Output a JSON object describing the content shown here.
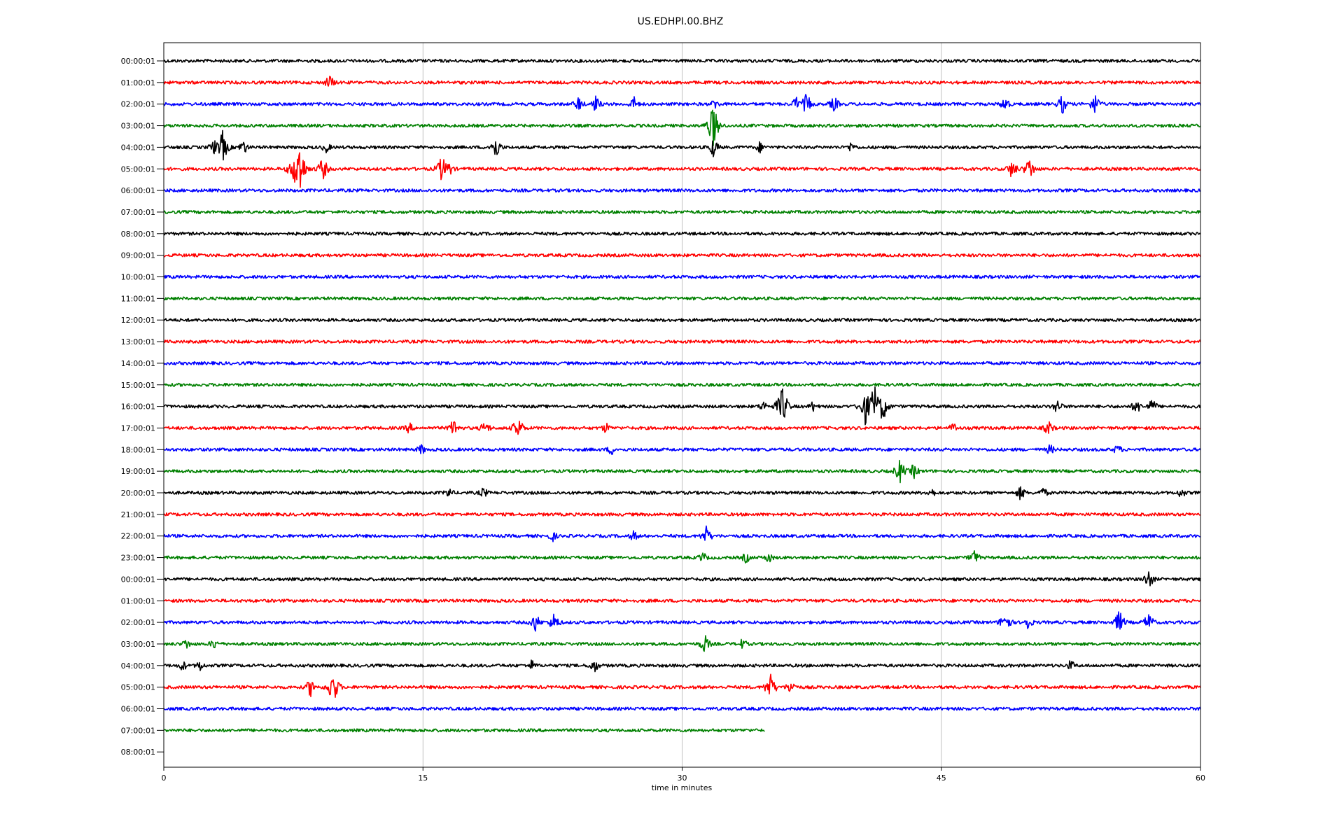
{
  "chart_data": {
    "type": "line",
    "title": "US.EDHPI.00.BHZ",
    "xlabel": "time in minutes",
    "ylabel": "",
    "xlim": [
      0,
      60
    ],
    "x_ticks": [
      "0",
      "15",
      "30",
      "45",
      "60"
    ],
    "x_grid": true,
    "colors": [
      "#000000",
      "#ff0000",
      "#0000ff",
      "#008000"
    ],
    "rows": [
      {
        "label": "00:00:01",
        "duration_min": 60,
        "events": []
      },
      {
        "label": "01:00:01",
        "duration_min": 60,
        "events": [
          {
            "t": 9.6,
            "amp": 0.4
          }
        ]
      },
      {
        "label": "02:00:01",
        "duration_min": 60,
        "events": [
          {
            "t": 24.0,
            "amp": 0.4
          },
          {
            "t": 25.0,
            "amp": 0.45
          },
          {
            "t": 27.2,
            "amp": 0.4
          },
          {
            "t": 31.9,
            "amp": 0.3
          },
          {
            "t": 36.6,
            "amp": 0.4
          },
          {
            "t": 37.2,
            "amp": 0.55
          },
          {
            "t": 38.8,
            "amp": 0.4
          },
          {
            "t": 48.7,
            "amp": 0.4
          },
          {
            "t": 52.0,
            "amp": 0.5
          },
          {
            "t": 53.9,
            "amp": 0.55
          }
        ]
      },
      {
        "label": "03:00:01",
        "duration_min": 60,
        "events": [
          {
            "t": 31.8,
            "amp": 1.1
          }
        ]
      },
      {
        "label": "04:00:01",
        "duration_min": 60,
        "events": [
          {
            "t": 2.9,
            "amp": 0.4
          },
          {
            "t": 3.4,
            "amp": 0.8
          },
          {
            "t": 4.6,
            "amp": 0.4
          },
          {
            "t": 9.4,
            "amp": 0.3
          },
          {
            "t": 19.2,
            "amp": 0.6
          },
          {
            "t": 31.8,
            "amp": 0.5
          },
          {
            "t": 34.5,
            "amp": 0.3
          },
          {
            "t": 39.8,
            "amp": 0.3
          }
        ]
      },
      {
        "label": "05:00:01",
        "duration_min": 60,
        "events": [
          {
            "t": 7.4,
            "amp": 0.5
          },
          {
            "t": 7.8,
            "amp": 1.7
          },
          {
            "t": 9.2,
            "amp": 0.6
          },
          {
            "t": 16.1,
            "amp": 0.7
          },
          {
            "t": 16.5,
            "amp": 0.4
          },
          {
            "t": 49.1,
            "amp": 0.5
          },
          {
            "t": 50.1,
            "amp": 0.6
          }
        ]
      },
      {
        "label": "06:00:01",
        "duration_min": 60,
        "events": []
      },
      {
        "label": "07:00:01",
        "duration_min": 60,
        "events": []
      },
      {
        "label": "08:00:01",
        "duration_min": 60,
        "events": []
      },
      {
        "label": "09:00:01",
        "duration_min": 60,
        "events": []
      },
      {
        "label": "10:00:01",
        "duration_min": 60,
        "events": []
      },
      {
        "label": "11:00:01",
        "duration_min": 60,
        "events": []
      },
      {
        "label": "12:00:01",
        "duration_min": 60,
        "events": []
      },
      {
        "label": "13:00:01",
        "duration_min": 60,
        "events": []
      },
      {
        "label": "14:00:01",
        "duration_min": 60,
        "events": []
      },
      {
        "label": "15:00:01",
        "duration_min": 60,
        "events": []
      },
      {
        "label": "16:00:01",
        "duration_min": 60,
        "events": [
          {
            "t": 34.7,
            "amp": 0.3
          },
          {
            "t": 35.8,
            "amp": 1.0
          },
          {
            "t": 37.6,
            "amp": 0.3
          },
          {
            "t": 40.6,
            "amp": 0.9
          },
          {
            "t": 41.1,
            "amp": 1.2
          },
          {
            "t": 41.6,
            "amp": 0.8
          },
          {
            "t": 51.7,
            "amp": 0.4
          },
          {
            "t": 56.3,
            "amp": 0.4
          },
          {
            "t": 57.2,
            "amp": 0.4
          }
        ]
      },
      {
        "label": "17:00:01",
        "duration_min": 60,
        "events": [
          {
            "t": 14.2,
            "amp": 0.3
          },
          {
            "t": 16.8,
            "amp": 0.5
          },
          {
            "t": 18.6,
            "amp": 0.4
          },
          {
            "t": 20.5,
            "amp": 0.6
          },
          {
            "t": 25.6,
            "amp": 0.3
          },
          {
            "t": 45.7,
            "amp": 0.3
          },
          {
            "t": 51.2,
            "amp": 0.4
          }
        ]
      },
      {
        "label": "18:00:01",
        "duration_min": 60,
        "events": [
          {
            "t": 14.9,
            "amp": 0.3
          },
          {
            "t": 25.9,
            "amp": 0.3
          },
          {
            "t": 51.3,
            "amp": 0.3
          },
          {
            "t": 55.2,
            "amp": 0.3
          }
        ]
      },
      {
        "label": "19:00:01",
        "duration_min": 60,
        "events": [
          {
            "t": 42.6,
            "amp": 0.6
          },
          {
            "t": 43.4,
            "amp": 0.4
          }
        ]
      },
      {
        "label": "20:00:01",
        "duration_min": 60,
        "events": [
          {
            "t": 16.5,
            "amp": 0.3
          },
          {
            "t": 18.5,
            "amp": 0.3
          },
          {
            "t": 44.4,
            "amp": 0.3
          },
          {
            "t": 49.6,
            "amp": 0.4
          },
          {
            "t": 50.9,
            "amp": 0.3
          },
          {
            "t": 58.9,
            "amp": 0.3
          }
        ]
      },
      {
        "label": "21:00:01",
        "duration_min": 60,
        "events": []
      },
      {
        "label": "22:00:01",
        "duration_min": 60,
        "events": [
          {
            "t": 22.5,
            "amp": 0.3
          },
          {
            "t": 27.2,
            "amp": 0.3
          },
          {
            "t": 31.4,
            "amp": 0.5
          }
        ]
      },
      {
        "label": "23:00:01",
        "duration_min": 60,
        "events": [
          {
            "t": 31.2,
            "amp": 0.3
          },
          {
            "t": 33.7,
            "amp": 0.3
          },
          {
            "t": 35.0,
            "amp": 0.3
          },
          {
            "t": 46.9,
            "amp": 0.4
          }
        ]
      },
      {
        "label": "00:00:01",
        "duration_min": 60,
        "events": [
          {
            "t": 57.0,
            "amp": 0.5
          }
        ]
      },
      {
        "label": "01:00:01",
        "duration_min": 60,
        "events": []
      },
      {
        "label": "02:00:01",
        "duration_min": 60,
        "events": [
          {
            "t": 21.5,
            "amp": 0.5
          },
          {
            "t": 22.6,
            "amp": 0.5
          },
          {
            "t": 48.7,
            "amp": 0.6
          },
          {
            "t": 50.0,
            "amp": 0.4
          },
          {
            "t": 55.3,
            "amp": 0.6
          },
          {
            "t": 57.0,
            "amp": 0.5
          }
        ]
      },
      {
        "label": "03:00:01",
        "duration_min": 60,
        "events": [
          {
            "t": 1.3,
            "amp": 0.3
          },
          {
            "t": 2.9,
            "amp": 0.3
          },
          {
            "t": 31.3,
            "amp": 0.5
          },
          {
            "t": 33.5,
            "amp": 0.3
          }
        ]
      },
      {
        "label": "04:00:01",
        "duration_min": 60,
        "events": [
          {
            "t": 1.1,
            "amp": 0.3
          },
          {
            "t": 2.1,
            "amp": 0.3
          },
          {
            "t": 21.3,
            "amp": 0.3
          },
          {
            "t": 24.9,
            "amp": 0.4
          },
          {
            "t": 52.5,
            "amp": 0.3
          }
        ]
      },
      {
        "label": "05:00:01",
        "duration_min": 60,
        "events": [
          {
            "t": 8.5,
            "amp": 0.5
          },
          {
            "t": 9.8,
            "amp": 0.9
          },
          {
            "t": 35.1,
            "amp": 0.7
          },
          {
            "t": 36.3,
            "amp": 0.4
          }
        ]
      },
      {
        "label": "06:00:01",
        "duration_min": 60,
        "events": []
      },
      {
        "label": "07:00:01",
        "duration_min": 34.8,
        "events": []
      },
      {
        "label": "08:00:01",
        "duration_min": 0,
        "events": []
      }
    ]
  }
}
